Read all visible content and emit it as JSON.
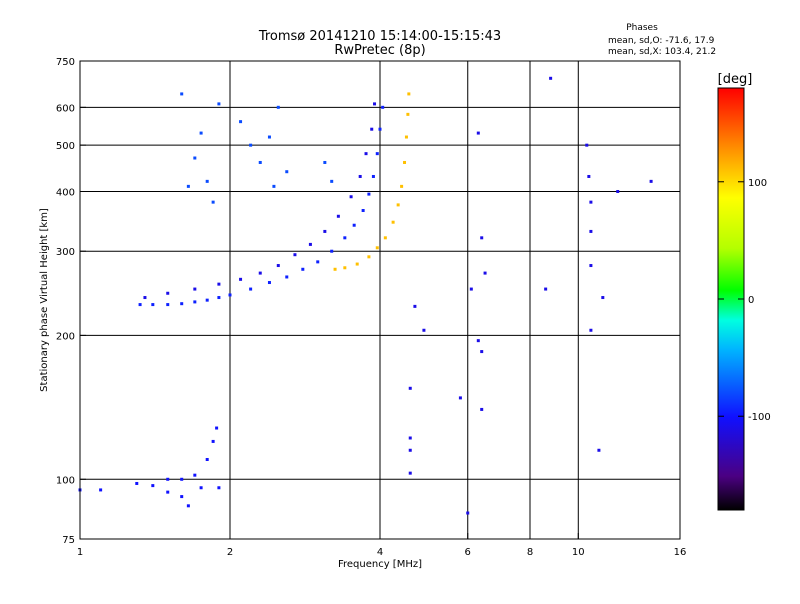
{
  "chart_data": {
    "type": "scatter",
    "title": "Tromsø 20141210 15:14:00-15:15:43",
    "subtitle": "RwPretec (8p)",
    "xlabel": "Frequency [MHz]",
    "ylabel": "Stationary phase Virtual Height [km]",
    "x_scale": "log",
    "y_scale": "log",
    "xlim": [
      1,
      16
    ],
    "ylim": [
      75,
      750
    ],
    "x_ticks": [
      1,
      2,
      4,
      6,
      8,
      10,
      16
    ],
    "y_ticks": [
      75,
      100,
      200,
      300,
      400,
      500,
      600,
      750
    ],
    "x_gridlines": [
      2,
      4,
      6,
      8,
      10
    ],
    "y_gridlines": [
      100,
      200,
      300,
      400,
      500,
      600
    ],
    "grid": true,
    "legend": {
      "title": "Phases",
      "lines": [
        "mean, sd,O: -71.6, 17.9",
        "mean, sd,X: 103.4, 21.2"
      ]
    },
    "colorbar": {
      "label": "[deg]",
      "range": [
        -180,
        180
      ],
      "ticks": [
        100,
        0,
        -100
      ],
      "tick_labels": [
        "100",
        "0",
        "-100"
      ],
      "colormap": "rainbow (black-violet-blue-cyan-green-yellow-red)"
    },
    "series": [
      {
        "trace": "O-mode lower trace",
        "phase_deg": -95,
        "points": [
          [
            1.32,
            232
          ],
          [
            1.4,
            232
          ],
          [
            1.5,
            232
          ],
          [
            1.6,
            233
          ],
          [
            1.7,
            235
          ],
          [
            1.8,
            237
          ],
          [
            1.9,
            240
          ],
          [
            2.0,
            243
          ],
          [
            2.2,
            250
          ],
          [
            2.4,
            258
          ],
          [
            2.6,
            265
          ],
          [
            2.8,
            275
          ],
          [
            3.0,
            285
          ],
          [
            3.2,
            300
          ],
          [
            3.4,
            320
          ],
          [
            3.55,
            340
          ],
          [
            3.7,
            365
          ],
          [
            3.8,
            395
          ],
          [
            3.88,
            430
          ],
          [
            3.95,
            480
          ],
          [
            4.0,
            540
          ],
          [
            4.05,
            600
          ]
        ]
      },
      {
        "trace": "O-mode upper trace",
        "phase_deg": -110,
        "points": [
          [
            1.35,
            240
          ],
          [
            1.5,
            245
          ],
          [
            1.7,
            250
          ],
          [
            1.9,
            256
          ],
          [
            2.1,
            262
          ],
          [
            2.3,
            270
          ],
          [
            2.5,
            280
          ],
          [
            2.7,
            295
          ],
          [
            2.9,
            310
          ],
          [
            3.1,
            330
          ],
          [
            3.3,
            355
          ],
          [
            3.5,
            390
          ],
          [
            3.65,
            430
          ],
          [
            3.75,
            480
          ],
          [
            3.85,
            540
          ],
          [
            3.9,
            610
          ]
        ]
      },
      {
        "trace": "X-mode trace",
        "phase_deg": 110,
        "points": [
          [
            3.25,
            275
          ],
          [
            3.4,
            277
          ],
          [
            3.6,
            282
          ],
          [
            3.8,
            292
          ],
          [
            3.95,
            305
          ],
          [
            4.1,
            320
          ],
          [
            4.25,
            345
          ],
          [
            4.35,
            375
          ],
          [
            4.42,
            410
          ],
          [
            4.48,
            460
          ],
          [
            4.52,
            520
          ],
          [
            4.55,
            580
          ],
          [
            4.57,
            640
          ]
        ]
      },
      {
        "trace": "diffuse echoes",
        "phase_deg": -80,
        "points": [
          [
            1.65,
            410
          ],
          [
            1.8,
            420
          ],
          [
            1.7,
            470
          ],
          [
            1.75,
            530
          ],
          [
            1.9,
            610
          ],
          [
            2.1,
            560
          ],
          [
            2.2,
            500
          ],
          [
            2.3,
            460
          ],
          [
            2.4,
            520
          ],
          [
            2.5,
            600
          ],
          [
            2.6,
            440
          ],
          [
            1.6,
            640
          ],
          [
            1.85,
            380
          ],
          [
            2.45,
            410
          ],
          [
            3.1,
            460
          ],
          [
            3.2,
            420
          ]
        ]
      },
      {
        "trace": "E-region echoes",
        "phase_deg": -100,
        "points": [
          [
            1.0,
            95
          ],
          [
            1.1,
            95
          ],
          [
            1.3,
            98
          ],
          [
            1.4,
            97
          ],
          [
            1.5,
            100
          ],
          [
            1.6,
            100
          ],
          [
            1.7,
            102
          ],
          [
            1.8,
            110
          ],
          [
            1.85,
            120
          ],
          [
            1.88,
            128
          ],
          [
            1.6,
            92
          ],
          [
            1.65,
            88
          ],
          [
            1.75,
            96
          ],
          [
            1.9,
            96
          ],
          [
            1.5,
            94
          ]
        ]
      },
      {
        "trace": "sparse high-frequency points",
        "phase_deg": -110,
        "points": [
          [
            4.6,
            103
          ],
          [
            4.6,
            115
          ],
          [
            4.6,
            122
          ],
          [
            4.6,
            155
          ],
          [
            4.7,
            230
          ],
          [
            4.9,
            205
          ],
          [
            5.8,
            148
          ],
          [
            6.1,
            250
          ],
          [
            6.3,
            195
          ],
          [
            6.4,
            185
          ],
          [
            6.4,
            140
          ],
          [
            6.4,
            320
          ],
          [
            6.5,
            270
          ],
          [
            6.3,
            530
          ],
          [
            6.0,
            85
          ],
          [
            8.6,
            250
          ],
          [
            10.5,
            430
          ],
          [
            10.6,
            380
          ],
          [
            10.6,
            330
          ],
          [
            10.6,
            280
          ],
          [
            10.6,
            205
          ],
          [
            11.0,
            115
          ],
          [
            11.2,
            240
          ],
          [
            12.0,
            400
          ],
          [
            14.0,
            420
          ],
          [
            8.8,
            690
          ],
          [
            10.4,
            500
          ]
        ]
      }
    ]
  }
}
